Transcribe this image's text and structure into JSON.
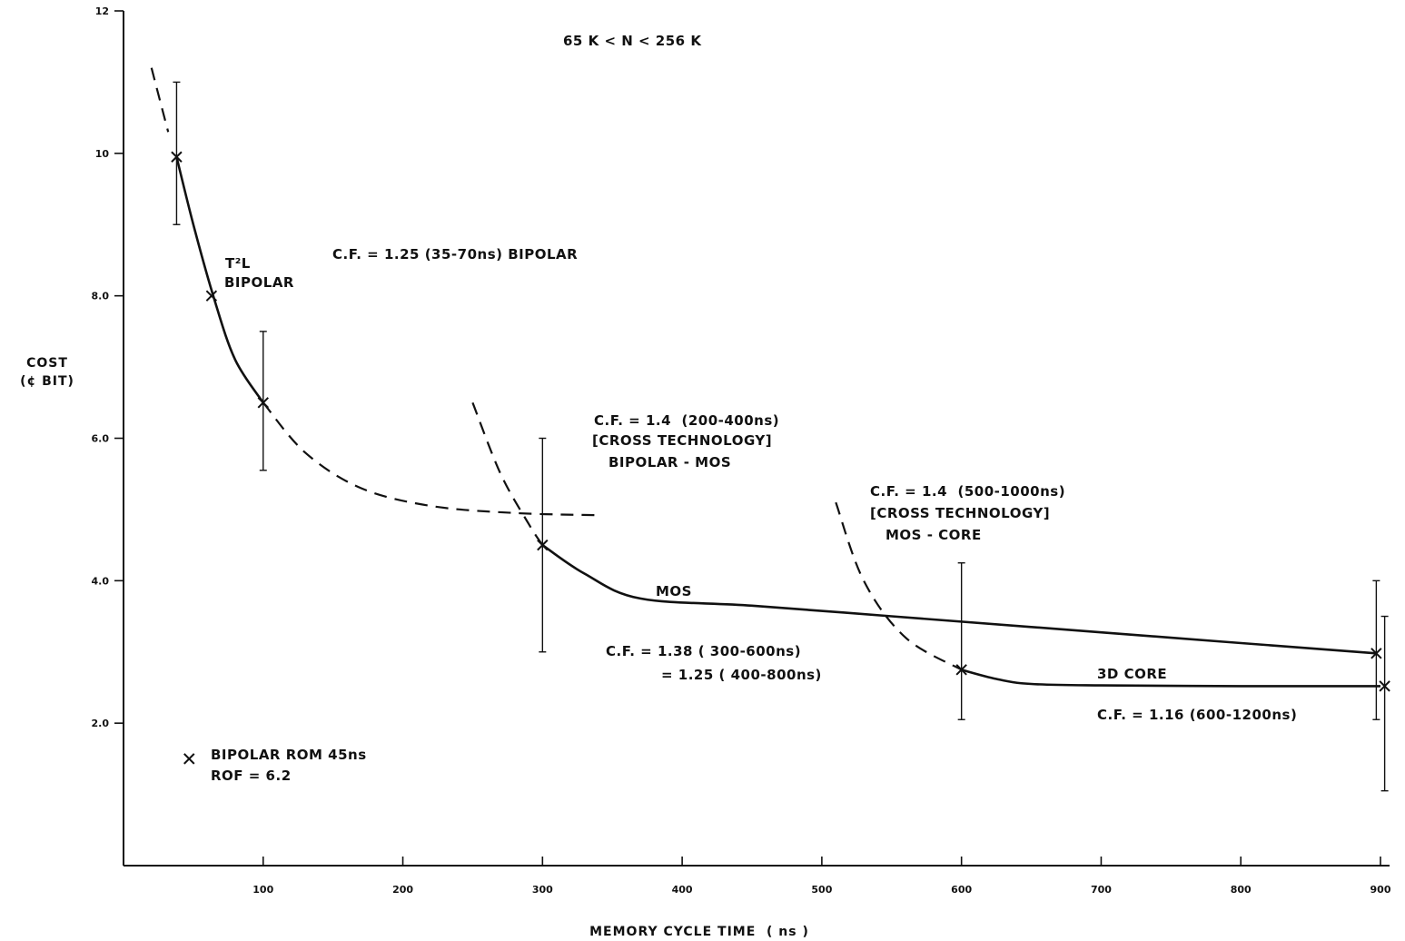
{
  "chart_data": {
    "type": "line",
    "title": "65 K < N < 256 K",
    "xlabel": "MEMORY CYCLE TIME  ( ns )",
    "ylabel": [
      "COST",
      "(¢ BIT)"
    ],
    "xlim": [
      0,
      900
    ],
    "ylim": [
      0,
      12
    ],
    "x_ticks": [
      {
        "value": 100,
        "label": "100"
      },
      {
        "value": 200,
        "label": "200"
      },
      {
        "value": 300,
        "label": "300"
      },
      {
        "value": 400,
        "label": "400"
      },
      {
        "value": 500,
        "label": "500"
      },
      {
        "value": 600,
        "label": "600"
      },
      {
        "value": 700,
        "label": "700"
      },
      {
        "value": 800,
        "label": "800"
      },
      {
        "value": 900,
        "label": "900"
      }
    ],
    "y_ticks": [
      {
        "value": 2,
        "label": "2.0"
      },
      {
        "value": 4,
        "label": "4.0"
      },
      {
        "value": 6,
        "label": "6.0"
      },
      {
        "value": 8,
        "label": "8.0"
      },
      {
        "value": 10,
        "label": "10"
      },
      {
        "value": 12,
        "label": "12"
      }
    ],
    "grid": false,
    "series": [
      {
        "name": "T²L BIPOLAR",
        "style": "solid",
        "x": [
          38,
          50,
          65,
          80,
          100
        ],
        "y": [
          9.95,
          9.0,
          7.95,
          7.1,
          6.5
        ]
      },
      {
        "style": "dashed",
        "x": [
          100,
          130,
          170,
          220,
          280,
          340
        ],
        "y": [
          6.5,
          5.8,
          5.3,
          5.05,
          4.95,
          4.92
        ]
      },
      {
        "style": "dashed",
        "x": [
          20,
          32
        ],
        "y": [
          11.2,
          10.3
        ]
      },
      {
        "name": "MOS",
        "style": "solid",
        "x": [
          300,
          330,
          370,
          450,
          550,
          650,
          750,
          850,
          897
        ],
        "y": [
          4.5,
          4.1,
          3.75,
          3.65,
          3.5,
          3.35,
          3.2,
          3.05,
          2.98
        ]
      },
      {
        "style": "dashed",
        "x": [
          250,
          270,
          290,
          300
        ],
        "y": [
          6.5,
          5.5,
          4.8,
          4.5
        ]
      },
      {
        "name": "3D CORE",
        "style": "solid",
        "x": [
          600,
          625,
          650,
          700,
          800,
          900
        ],
        "y": [
          2.75,
          2.62,
          2.55,
          2.53,
          2.52,
          2.52
        ]
      },
      {
        "style": "dashed",
        "x": [
          510,
          530,
          560,
          600
        ],
        "y": [
          5.1,
          4.0,
          3.2,
          2.75
        ]
      }
    ],
    "markers": [
      {
        "x": 38,
        "y": 9.95
      },
      {
        "x": 63,
        "y": 8.0
      },
      {
        "x": 100,
        "y": 6.5
      },
      {
        "x": 300,
        "y": 4.5
      },
      {
        "x": 600,
        "y": 2.75
      },
      {
        "x": 897,
        "y": 2.98
      },
      {
        "x": 903,
        "y": 2.52
      },
      {
        "x": 47,
        "y": 1.5
      }
    ],
    "error_bars": [
      {
        "x": 38,
        "low": 9.0,
        "high": 11.0
      },
      {
        "x": 100,
        "low": 5.55,
        "high": 7.5
      },
      {
        "x": 300,
        "low": 3.0,
        "high": 6.0
      },
      {
        "x": 600,
        "low": 2.05,
        "high": 4.25
      },
      {
        "x": 897,
        "low": 2.05,
        "high": 4.0
      },
      {
        "x": 903,
        "low": 1.05,
        "high": 3.5
      }
    ],
    "annotations": [
      {
        "id": "t2l",
        "lines": [
          "T²L",
          "BIPOLAR"
        ]
      },
      {
        "id": "cf-bipolar",
        "lines": [
          "C.F. = 1.25 (35-70ns) BIPOLAR"
        ]
      },
      {
        "id": "cf-cross-bipolar-mos",
        "lines": [
          "C.F. = 1.4  (200-400ns)",
          "[CROSS TECHNOLOGY]",
          "BIPOLAR - MOS"
        ]
      },
      {
        "id": "cf-cross-mos-core",
        "lines": [
          "C.F. = 1.4  (500-1000ns)",
          "[CROSS TECHNOLOGY]",
          "MOS - CORE"
        ]
      },
      {
        "id": "mos-label",
        "lines": [
          "MOS"
        ]
      },
      {
        "id": "cf-mos",
        "lines": [
          "C.F. = 1.38 ( 300-600ns)",
          "= 1.25 ( 400-800ns)"
        ]
      },
      {
        "id": "core-label",
        "lines": [
          "3D CORE"
        ]
      },
      {
        "id": "cf-core",
        "lines": [
          "C.F. = 1.16 (600-1200ns)"
        ]
      },
      {
        "id": "rom",
        "lines": [
          "BIPOLAR ROM 45ns",
          "ROF = 6.2"
        ]
      }
    ]
  }
}
